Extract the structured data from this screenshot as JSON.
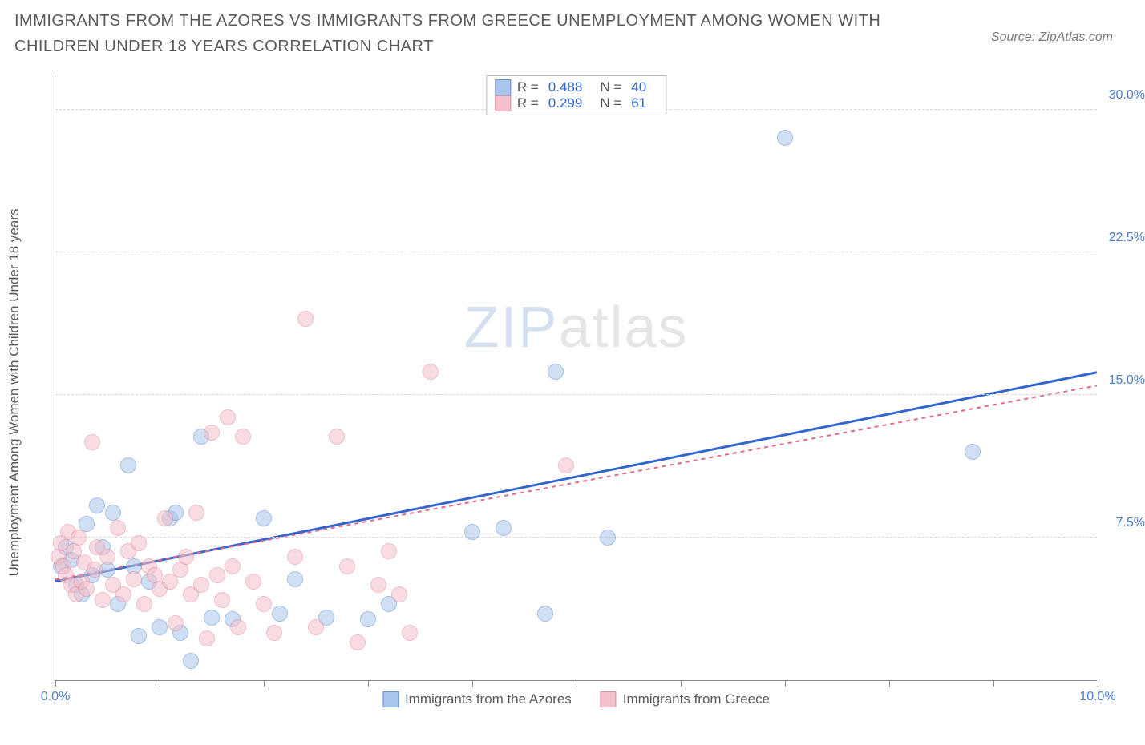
{
  "title": "IMMIGRANTS FROM THE AZORES VS IMMIGRANTS FROM GREECE UNEMPLOYMENT AMONG WOMEN WITH CHILDREN UNDER 18 YEARS CORRELATION CHART",
  "source": "Source: ZipAtlas.com",
  "y_axis_title": "Unemployment Among Women with Children Under 18 years",
  "watermark": {
    "left": "ZIP",
    "right": "atlas"
  },
  "chart": {
    "type": "scatter",
    "xlim": [
      0,
      10
    ],
    "ylim": [
      0,
      32
    ],
    "x_ticks": [
      0,
      1,
      2,
      3,
      4,
      5,
      6,
      7,
      8,
      9,
      10
    ],
    "x_tick_labels": {
      "0": "0.0%",
      "10": "10.0%"
    },
    "y_grid": [
      7.5,
      15.0,
      22.5,
      30.0
    ],
    "y_grid_labels": [
      "7.5%",
      "15.0%",
      "22.5%",
      "30.0%"
    ],
    "plot_bg": "#ffffff",
    "grid_color": "#d8d8d8",
    "axis_color": "#888888",
    "label_color": "#4a7ec9",
    "title_color": "#5a5a5a",
    "title_fontsize": 20,
    "label_fontsize": 16,
    "point_radius": 10,
    "point_opacity": 0.55,
    "series": [
      {
        "name": "Immigrants from the Azores",
        "fill": "#a8c5ec",
        "stroke": "#5e8fd0",
        "trend_color": "#3366cc",
        "trend_width": 3,
        "trend_dash": "none",
        "R": "0.488",
        "N": "40",
        "trend": {
          "x1": 0,
          "y1": 5.2,
          "x2": 10,
          "y2": 16.2
        },
        "points": [
          [
            0.05,
            6.0
          ],
          [
            0.1,
            7.0
          ],
          [
            0.15,
            6.3
          ],
          [
            0.2,
            5.0
          ],
          [
            0.25,
            4.5
          ],
          [
            0.3,
            8.2
          ],
          [
            0.35,
            5.5
          ],
          [
            0.4,
            9.2
          ],
          [
            0.45,
            7.0
          ],
          [
            0.5,
            5.8
          ],
          [
            0.55,
            8.8
          ],
          [
            0.6,
            4.0
          ],
          [
            0.7,
            11.3
          ],
          [
            0.75,
            6.0
          ],
          [
            0.8,
            2.3
          ],
          [
            0.9,
            5.2
          ],
          [
            1.0,
            2.8
          ],
          [
            1.1,
            8.5
          ],
          [
            1.15,
            8.8
          ],
          [
            1.2,
            2.5
          ],
          [
            1.3,
            1.0
          ],
          [
            1.4,
            12.8
          ],
          [
            1.5,
            3.3
          ],
          [
            1.7,
            3.2
          ],
          [
            2.0,
            8.5
          ],
          [
            2.15,
            3.5
          ],
          [
            2.3,
            5.3
          ],
          [
            2.6,
            3.3
          ],
          [
            3.0,
            3.2
          ],
          [
            3.2,
            4.0
          ],
          [
            4.0,
            7.8
          ],
          [
            4.3,
            8.0
          ],
          [
            4.7,
            3.5
          ],
          [
            4.8,
            16.2
          ],
          [
            5.3,
            7.5
          ],
          [
            7.0,
            28.5
          ],
          [
            8.8,
            12.0
          ]
        ]
      },
      {
        "name": "Immigrants from Greece",
        "fill": "#f4c0ca",
        "stroke": "#e38ba0",
        "trend_color": "#e26b87",
        "trend_width": 2,
        "trend_dash": "5,5",
        "R": "0.299",
        "N": "61",
        "trend": {
          "x1": 0,
          "y1": 5.3,
          "x2": 10,
          "y2": 15.5
        },
        "points": [
          [
            0.03,
            6.5
          ],
          [
            0.05,
            7.2
          ],
          [
            0.08,
            6.0
          ],
          [
            0.1,
            5.5
          ],
          [
            0.12,
            7.8
          ],
          [
            0.15,
            5.0
          ],
          [
            0.18,
            6.8
          ],
          [
            0.2,
            4.5
          ],
          [
            0.22,
            7.5
          ],
          [
            0.25,
            5.2
          ],
          [
            0.28,
            6.2
          ],
          [
            0.3,
            4.8
          ],
          [
            0.35,
            12.5
          ],
          [
            0.38,
            5.8
          ],
          [
            0.4,
            7.0
          ],
          [
            0.45,
            4.2
          ],
          [
            0.5,
            6.5
          ],
          [
            0.55,
            5.0
          ],
          [
            0.6,
            8.0
          ],
          [
            0.65,
            4.5
          ],
          [
            0.7,
            6.8
          ],
          [
            0.75,
            5.3
          ],
          [
            0.8,
            7.2
          ],
          [
            0.85,
            4.0
          ],
          [
            0.9,
            6.0
          ],
          [
            0.95,
            5.5
          ],
          [
            1.0,
            4.8
          ],
          [
            1.05,
            8.5
          ],
          [
            1.1,
            5.2
          ],
          [
            1.15,
            3.0
          ],
          [
            1.2,
            5.8
          ],
          [
            1.25,
            6.5
          ],
          [
            1.3,
            4.5
          ],
          [
            1.35,
            8.8
          ],
          [
            1.4,
            5.0
          ],
          [
            1.45,
            2.2
          ],
          [
            1.5,
            13.0
          ],
          [
            1.55,
            5.5
          ],
          [
            1.6,
            4.2
          ],
          [
            1.65,
            13.8
          ],
          [
            1.7,
            6.0
          ],
          [
            1.75,
            2.8
          ],
          [
            1.8,
            12.8
          ],
          [
            1.9,
            5.2
          ],
          [
            2.0,
            4.0
          ],
          [
            2.1,
            2.5
          ],
          [
            2.3,
            6.5
          ],
          [
            2.4,
            19.0
          ],
          [
            2.5,
            2.8
          ],
          [
            2.7,
            12.8
          ],
          [
            2.8,
            6.0
          ],
          [
            2.9,
            2.0
          ],
          [
            3.1,
            5.0
          ],
          [
            3.2,
            6.8
          ],
          [
            3.3,
            4.5
          ],
          [
            3.4,
            2.5
          ],
          [
            3.6,
            16.2
          ],
          [
            4.9,
            11.3
          ]
        ]
      }
    ]
  },
  "legend_bottom": [
    {
      "label": "Immigrants from the Azores",
      "fill": "#a8c5ec",
      "stroke": "#5e8fd0"
    },
    {
      "label": "Immigrants from Greece",
      "fill": "#f4c0ca",
      "stroke": "#e38ba0"
    }
  ]
}
